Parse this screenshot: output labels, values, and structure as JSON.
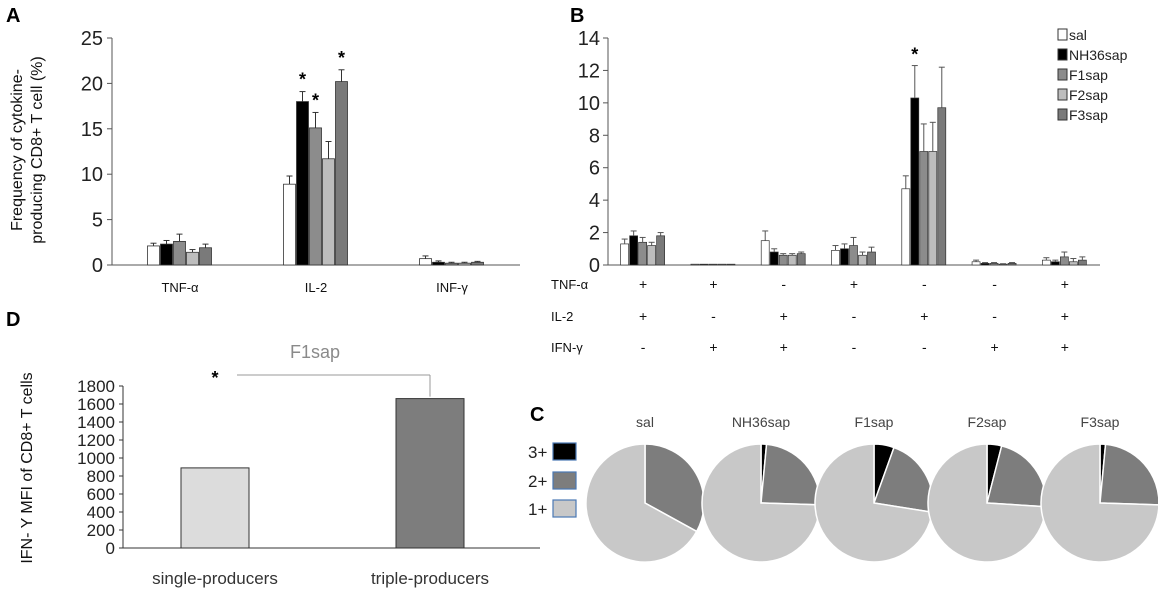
{
  "chart_data": [
    {
      "panel": "A",
      "type": "bar",
      "ylabel": "Frequency of cytokine-producing CD8+ T cell (%)",
      "ylabel_lines": [
        "Frequency of cytokine-",
        "producing CD8+ T cell (%)"
      ],
      "ylim": [
        0,
        25
      ],
      "yticks": [
        0,
        5,
        10,
        15,
        20,
        25
      ],
      "categories": [
        "TNF-α",
        "IL-2",
        "INF-γ"
      ],
      "series": [
        {
          "name": "sal",
          "color": "#ffffff",
          "values": [
            2.1,
            8.9,
            0.7
          ],
          "errors": [
            0.3,
            0.9,
            0.3
          ]
        },
        {
          "name": "NH36sap",
          "color": "#000000",
          "values": [
            2.3,
            18.0,
            0.3
          ],
          "errors": [
            0.4,
            1.1,
            0.15
          ]
        },
        {
          "name": "F1sap",
          "color": "#8c8c8c",
          "values": [
            2.6,
            15.1,
            0.2
          ],
          "errors": [
            0.8,
            1.7,
            0.1
          ]
        },
        {
          "name": "F2sap",
          "color": "#bdbdbd",
          "values": [
            1.4,
            11.7,
            0.2
          ],
          "errors": [
            0.3,
            1.9,
            0.1
          ]
        },
        {
          "name": "F3sap",
          "color": "#7a7a7a",
          "values": [
            1.9,
            20.2,
            0.3
          ],
          "errors": [
            0.4,
            1.3,
            0.1
          ]
        }
      ],
      "significance": [
        {
          "category": 1,
          "series": 1,
          "label": "*"
        },
        {
          "category": 1,
          "series": 2,
          "label": "*"
        },
        {
          "category": 1,
          "series": 4,
          "label": "*"
        }
      ]
    },
    {
      "panel": "B",
      "type": "bar",
      "ylim": [
        0,
        14
      ],
      "yticks": [
        0,
        2,
        4,
        6,
        8,
        10,
        12,
        14
      ],
      "row_labels": [
        "TNF-α",
        "IL-2",
        "IFN-γ"
      ],
      "categories": [
        {
          "TNF": "+",
          "IL2": "+",
          "IFN": "-"
        },
        {
          "TNF": "+",
          "IL2": "-",
          "IFN": "+"
        },
        {
          "TNF": "-",
          "IL2": "+",
          "IFN": "+"
        },
        {
          "TNF": "+",
          "IL2": "-",
          "IFN": "-"
        },
        {
          "TNF": "-",
          "IL2": "+",
          "IFN": "-"
        },
        {
          "TNF": "-",
          "IL2": "-",
          "IFN": "+"
        },
        {
          "TNF": "+",
          "IL2": "+",
          "IFN": "+"
        }
      ],
      "series": [
        {
          "name": "sal",
          "color": "#ffffff",
          "values": [
            1.3,
            0.05,
            1.5,
            0.9,
            4.7,
            0.2,
            0.3
          ],
          "errors": [
            0.3,
            0.0,
            0.6,
            0.3,
            0.8,
            0.1,
            0.15
          ]
        },
        {
          "name": "NH36sap",
          "color": "#000000",
          "values": [
            1.8,
            0.05,
            0.8,
            1.0,
            10.3,
            0.1,
            0.2
          ],
          "errors": [
            0.3,
            0.0,
            0.2,
            0.3,
            2.0,
            0.05,
            0.1
          ]
        },
        {
          "name": "F1sap",
          "color": "#8c8c8c",
          "values": [
            1.4,
            0.05,
            0.6,
            1.2,
            7.0,
            0.1,
            0.5
          ],
          "errors": [
            0.3,
            0.0,
            0.1,
            0.5,
            1.7,
            0.05,
            0.3
          ]
        },
        {
          "name": "F2sap",
          "color": "#bdbdbd",
          "values": [
            1.2,
            0.05,
            0.6,
            0.6,
            7.0,
            0.05,
            0.2
          ],
          "errors": [
            0.2,
            0.0,
            0.1,
            0.2,
            1.8,
            0.03,
            0.2
          ]
        },
        {
          "name": "F3sap",
          "color": "#7a7a7a",
          "values": [
            1.8,
            0.05,
            0.7,
            0.8,
            9.7,
            0.1,
            0.3
          ],
          "errors": [
            0.2,
            0.0,
            0.1,
            0.3,
            2.5,
            0.05,
            0.2
          ]
        }
      ],
      "legend": [
        "sal",
        "NH36sap",
        "F1sap",
        "F2sap",
        "F3sap"
      ],
      "legend_position": "top-right",
      "significance": [
        {
          "category": 4,
          "series": 1,
          "label": "*"
        }
      ]
    },
    {
      "panel": "C",
      "type": "pie",
      "legend": [
        {
          "label": "3+",
          "color": "#000000"
        },
        {
          "label": "2+",
          "color": "#7d7d7d"
        },
        {
          "label": "1+",
          "color": "#c8c8c8"
        }
      ],
      "pies": [
        {
          "title": "sal",
          "values": [
            0,
            33,
            67
          ]
        },
        {
          "title": "NH36sap",
          "values": [
            1.5,
            24,
            74.5
          ]
        },
        {
          "title": "F1sap",
          "values": [
            5.5,
            22,
            72.5
          ]
        },
        {
          "title": "F2sap",
          "values": [
            4,
            22,
            74
          ]
        },
        {
          "title": "F3sap",
          "values": [
            1.5,
            24,
            74.5
          ]
        }
      ]
    },
    {
      "panel": "D",
      "type": "bar",
      "title": "F1sap",
      "ylabel": "IFN- Y MFI of CD8+ T cells",
      "ylim": [
        0,
        1800
      ],
      "yticks": [
        0,
        200,
        400,
        600,
        800,
        1000,
        1200,
        1400,
        1600,
        1800
      ],
      "categories": [
        "single-producers",
        "triple-producers"
      ],
      "values": [
        890,
        1660
      ],
      "colors": [
        "#dcdcdc",
        "#7d7d7d"
      ],
      "significance": [
        {
          "label": "*"
        }
      ]
    }
  ]
}
